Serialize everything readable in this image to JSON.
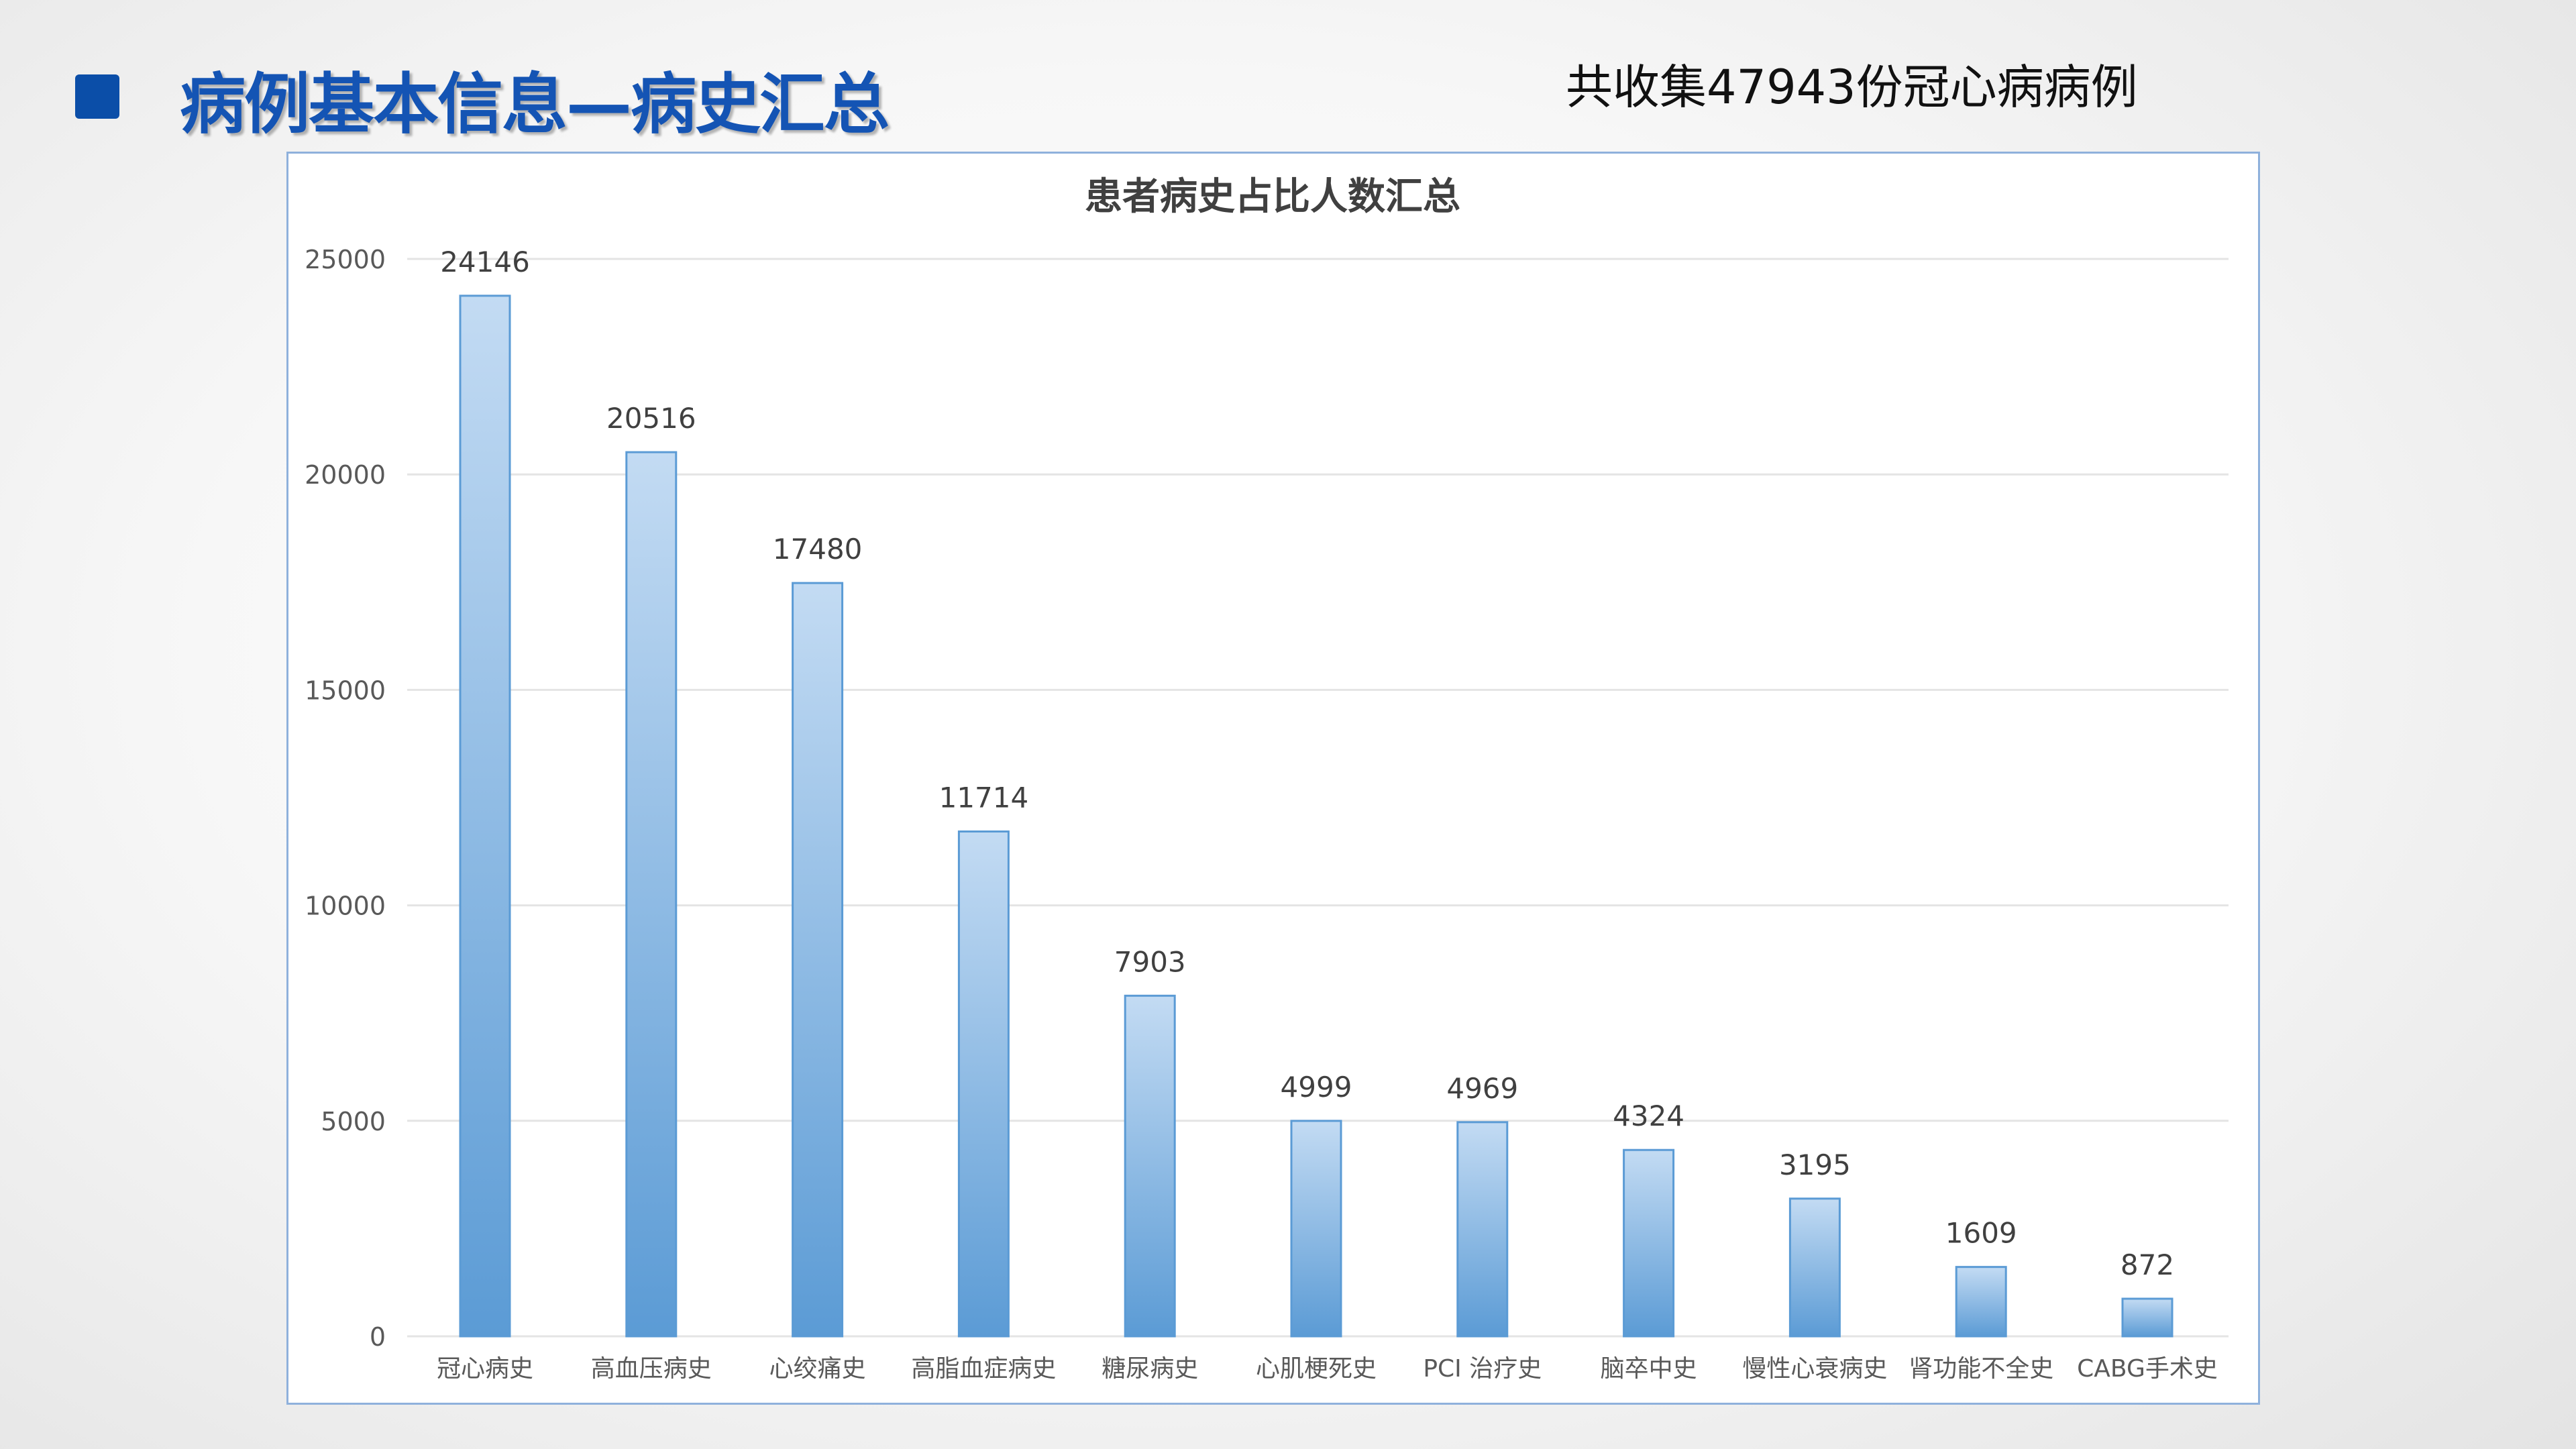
{
  "header": {
    "title": "病例基本信息—病史汇总",
    "note": "共收集47943份冠心病病例"
  },
  "colors": {
    "title": "#1454b4",
    "header_square": "#0b4ea8",
    "bar_top": "#c3dbf3",
    "bar_bottom": "#5b9bd5",
    "bar_border": "#5b9bd5",
    "grid": "#e4e4e4",
    "axis_text": "#595959"
  },
  "chart_data": {
    "type": "bar",
    "title": "患者病史占比人数汇总",
    "xlabel": "",
    "ylabel": "",
    "categories": [
      "冠心病史",
      "高血压病史",
      "心绞痛史",
      "高脂血症病史",
      "糖尿病史",
      "心肌梗死史",
      "PCI 治疗史",
      "脑卒中史",
      "慢性心衰病史",
      "肾功能不全史",
      "CABG手术史"
    ],
    "values": [
      24146,
      20516,
      17480,
      11714,
      7903,
      4999,
      4969,
      4324,
      3195,
      1609,
      872
    ],
    "ylim": [
      0,
      25000
    ],
    "yticks": [
      0,
      5000,
      10000,
      15000,
      20000,
      25000
    ],
    "grid": true,
    "data_labels": true,
    "legend": "none"
  }
}
